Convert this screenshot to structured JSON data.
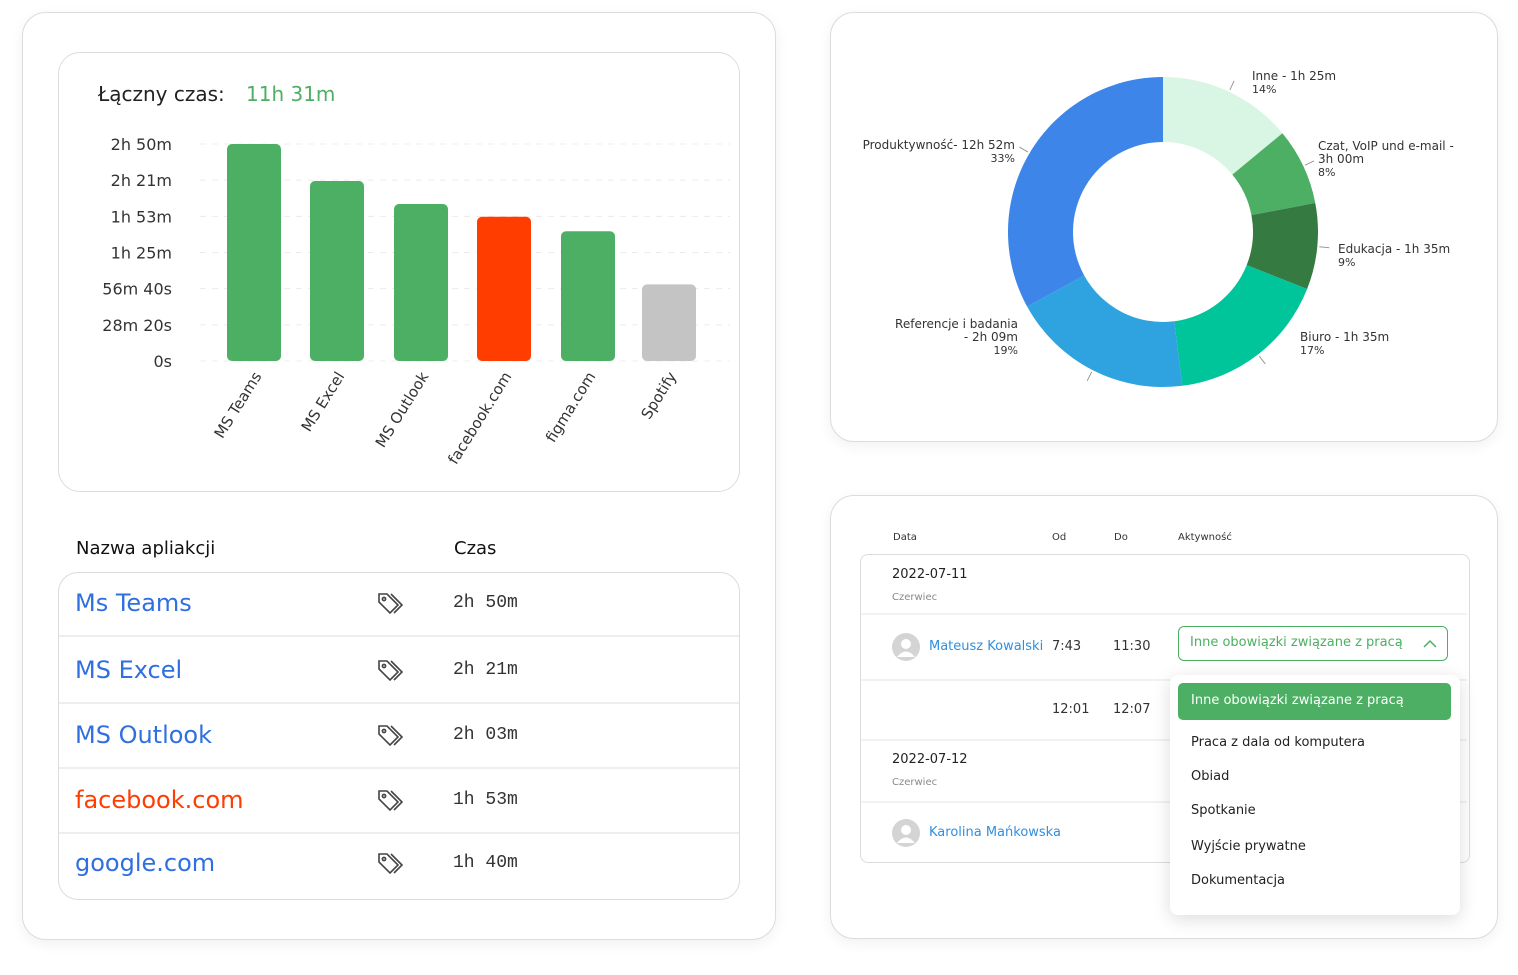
{
  "chart_data": [
    {
      "type": "bar",
      "title": "Łączny czas:",
      "subtitle": "11h 31m",
      "categories": [
        "MS Teams",
        "MS Excel",
        "MS Outlook",
        "facebook.com",
        "figma.com",
        "Spotify"
      ],
      "values": [
        10200,
        8460,
        7380,
        6780,
        6100,
        3600
      ],
      "colors": [
        "#4caf63",
        "#4caf63",
        "#4caf63",
        "#ff3d00",
        "#4caf63",
        "#c4c4c4"
      ],
      "ylim": [
        0,
        10200
      ],
      "yticks": [
        {
          "value": 0,
          "label": "0s"
        },
        {
          "value": 1700,
          "label": "28m 20s"
        },
        {
          "value": 3400,
          "label": "56m 40s"
        },
        {
          "value": 5100,
          "label": "1h 25m"
        },
        {
          "value": 6800,
          "label": "1h 53m"
        },
        {
          "value": 8500,
          "label": "2h 21m"
        },
        {
          "value": 10200,
          "label": "2h 50m"
        }
      ],
      "grid": true
    },
    {
      "type": "pie",
      "categories": [
        "Inne - 1h 25m",
        "Czat, VoIP und e-mail - 3h 00m",
        "Edukacja - 1h 35m",
        "Biuro - 1h 35m",
        "Referencje i badania - 2h 09m",
        "Produktywność- 12h 52m"
      ],
      "values": [
        14,
        8,
        9,
        17,
        19,
        33
      ],
      "value_labels": [
        "14%",
        "8%",
        "9%",
        "17%",
        "19%",
        "33%"
      ],
      "colors": [
        "#d9f5e3",
        "#4caf63",
        "#357a41",
        "#00c49a",
        "#2fa3e0",
        "#3d85e8"
      ]
    }
  ],
  "app_table": {
    "headers": [
      "Nazwa apliakcji",
      "Czas"
    ],
    "rows": [
      {
        "name": "Ms Teams",
        "time": "2h 50m",
        "color": "#2f6fe0"
      },
      {
        "name": "MS Excel",
        "time": "2h 21m",
        "color": "#2f6fe0"
      },
      {
        "name": "MS Outlook",
        "time": "2h 03m",
        "color": "#2f6fe0"
      },
      {
        "name": "facebook.com",
        "time": "1h 53m",
        "color": "#ff3d00"
      },
      {
        "name": "google.com",
        "time": "1h 40m",
        "color": "#2f6fe0"
      }
    ]
  },
  "activity_table": {
    "headers": [
      "Data",
      "Od",
      "Do",
      "Aktywność"
    ],
    "groups": [
      {
        "date": "2022-07-11",
        "month": "Czerwiec",
        "rows": [
          {
            "name": "Mateusz Kowalski",
            "from": "7:43",
            "to": "11:30",
            "activity": "Inne obowiązki związane z pracą"
          },
          {
            "from": "12:01",
            "to": "12:07"
          }
        ]
      },
      {
        "date": "2022-07-12",
        "month": "Czerwiec",
        "rows": [
          {
            "name": "Karolina Mańkowska"
          }
        ]
      }
    ]
  },
  "dropdown": {
    "options": [
      "Inne obowiązki związane z pracą",
      "Praca z dala od komputera",
      "Obiad",
      "Spotkanie",
      "Wyjście prywatne",
      "Dokumentacja"
    ]
  }
}
